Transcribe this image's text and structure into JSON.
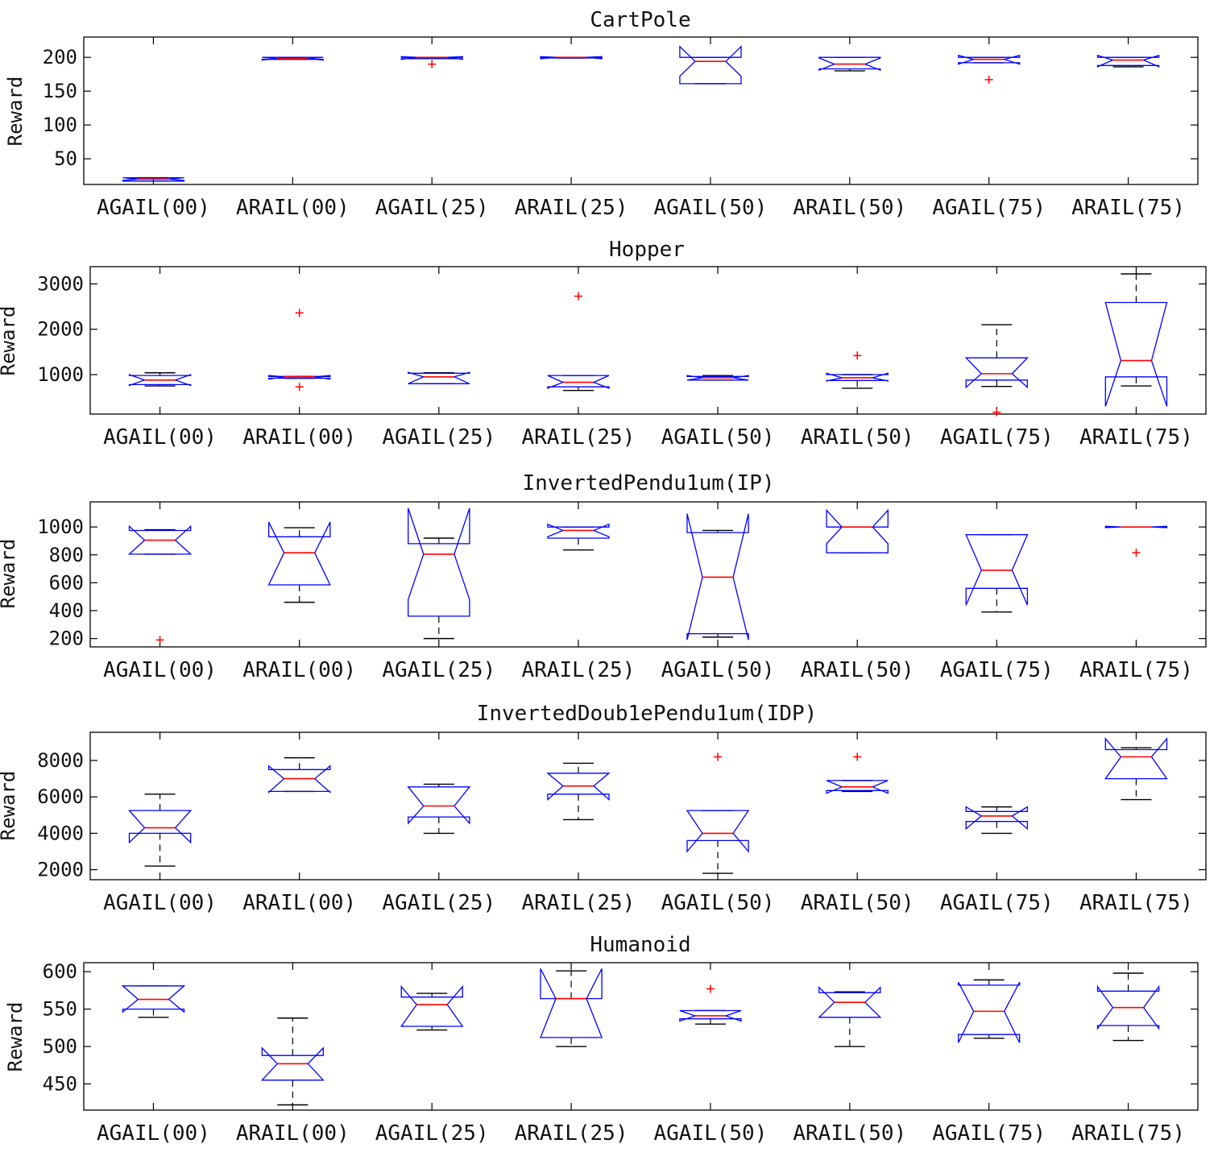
{
  "chart_data": [
    {
      "type": "box",
      "title": "CartPole",
      "ylabel": "Reward",
      "ylim": [
        12,
        230
      ],
      "yticks": [
        50,
        100,
        150,
        200
      ],
      "categories": [
        "AGAIL(00)",
        "ARAIL(00)",
        "AGAIL(25)",
        "ARAIL(25)",
        "AGAIL(50)",
        "ARAIL(50)",
        "AGAIL(75)",
        "ARAIL(75)"
      ],
      "boxes": [
        {
          "q1": 17,
          "median": 20,
          "q3": 22,
          "whisker_low": 17,
          "whisker_high": 22,
          "notch_low": 18,
          "notch_high": 22,
          "outliers": []
        },
        {
          "q1": 197,
          "median": 198,
          "q3": 200,
          "whisker_low": 197,
          "whisker_high": 200,
          "notch_low": 196,
          "notch_high": 200,
          "outliers": []
        },
        {
          "q1": 198,
          "median": 200,
          "q3": 200,
          "whisker_low": 198,
          "whisker_high": 200,
          "notch_low": 197,
          "notch_high": 201,
          "outliers": [
            190
          ]
        },
        {
          "q1": 199,
          "median": 200,
          "q3": 200,
          "whisker_low": 199,
          "whisker_high": 200,
          "notch_low": 198,
          "notch_high": 201,
          "outliers": []
        },
        {
          "q1": 161,
          "median": 194,
          "q3": 200,
          "whisker_low": 161,
          "whisker_high": 200,
          "notch_low": 172,
          "notch_high": 216,
          "outliers": []
        },
        {
          "q1": 183,
          "median": 190,
          "q3": 200,
          "whisker_low": 180,
          "whisker_high": 200,
          "notch_low": 181,
          "notch_high": 199,
          "outliers": []
        },
        {
          "q1": 192,
          "median": 197,
          "q3": 200,
          "whisker_low": 192,
          "whisker_high": 200,
          "notch_low": 190,
          "notch_high": 203,
          "outliers": [
            167
          ]
        },
        {
          "q1": 188,
          "median": 196,
          "q3": 200,
          "whisker_low": 186,
          "whisker_high": 200,
          "notch_low": 186,
          "notch_high": 203,
          "outliers": []
        }
      ]
    },
    {
      "type": "box",
      "title": "Hopper",
      "ylabel": "Reward",
      "ylim": [
        130,
        3380
      ],
      "yticks": [
        1000,
        2000,
        3000
      ],
      "categories": [
        "AGAIL(00)",
        "ARAIL(00)",
        "AGAIL(25)",
        "ARAIL(25)",
        "AGAIL(50)",
        "ARAIL(50)",
        "AGAIL(75)",
        "ARAIL(75)"
      ],
      "boxes": [
        {
          "q1": 780,
          "median": 880,
          "q3": 980,
          "whisker_low": 750,
          "whisker_high": 1040,
          "notch_low": 760,
          "notch_high": 1000,
          "outliers": []
        },
        {
          "q1": 920,
          "median": 950,
          "q3": 960,
          "whisker_low": 920,
          "whisker_high": 960,
          "notch_low": 900,
          "notch_high": 980,
          "outliers": [
            730,
            2360
          ]
        },
        {
          "q1": 800,
          "median": 950,
          "q3": 1030,
          "whisker_low": 800,
          "whisker_high": 1040,
          "notch_low": 800,
          "notch_high": 1050,
          "outliers": []
        },
        {
          "q1": 730,
          "median": 830,
          "q3": 980,
          "whisker_low": 650,
          "whisker_high": 980,
          "notch_low": 700,
          "notch_high": 980,
          "outliers": [
            2730
          ]
        },
        {
          "q1": 880,
          "median": 930,
          "q3": 960,
          "whisker_low": 880,
          "whisker_high": 980,
          "notch_low": 880,
          "notch_high": 980,
          "outliers": []
        },
        {
          "q1": 870,
          "median": 930,
          "q3": 1000,
          "whisker_low": 700,
          "whisker_high": 1000,
          "notch_low": 860,
          "notch_high": 1030,
          "outliers": [
            1420
          ]
        },
        {
          "q1": 880,
          "median": 1020,
          "q3": 1370,
          "whisker_low": 740,
          "whisker_high": 2100,
          "notch_low": 720,
          "notch_high": 1370,
          "outliers": [
            170
          ]
        },
        {
          "q1": 950,
          "median": 1310,
          "q3": 2590,
          "whisker_low": 750,
          "whisker_high": 3220,
          "notch_low": 300,
          "notch_high": 2590,
          "outliers": []
        }
      ]
    },
    {
      "type": "box",
      "title": "InvertedPendu1um(IP)",
      "ylabel": "Reward",
      "ylim": [
        140,
        1180
      ],
      "yticks": [
        200,
        400,
        600,
        800,
        1000
      ],
      "categories": [
        "AGAIL(00)",
        "ARAIL(00)",
        "AGAIL(25)",
        "ARAIL(25)",
        "AGAIL(50)",
        "ARAIL(50)",
        "AGAIL(75)",
        "ARAIL(75)"
      ],
      "boxes": [
        {
          "q1": 805,
          "median": 905,
          "q3": 975,
          "whisker_low": 805,
          "whisker_high": 980,
          "notch_low": 805,
          "notch_high": 1005,
          "outliers": [
            190
          ]
        },
        {
          "q1": 585,
          "median": 815,
          "q3": 930,
          "whisker_low": 460,
          "whisker_high": 995,
          "notch_low": 585,
          "notch_high": 1035,
          "outliers": []
        },
        {
          "q1": 360,
          "median": 805,
          "q3": 880,
          "whisker_low": 200,
          "whisker_high": 920,
          "notch_low": 480,
          "notch_high": 1135,
          "outliers": []
        },
        {
          "q1": 920,
          "median": 975,
          "q3": 1000,
          "whisker_low": 835,
          "whisker_high": 1000,
          "notch_low": 930,
          "notch_high": 1020,
          "outliers": []
        },
        {
          "q1": 235,
          "median": 640,
          "q3": 960,
          "whisker_low": 210,
          "whisker_high": 975,
          "notch_low": 190,
          "notch_high": 1095,
          "outliers": []
        },
        {
          "q1": 815,
          "median": 1000,
          "q3": 1000,
          "whisker_low": 815,
          "whisker_high": 1000,
          "notch_low": 880,
          "notch_high": 1120,
          "outliers": []
        },
        {
          "q1": 560,
          "median": 690,
          "q3": 945,
          "whisker_low": 390,
          "whisker_high": 945,
          "notch_low": 440,
          "notch_high": 945,
          "outliers": []
        },
        {
          "q1": 1000,
          "median": 1000,
          "q3": 1000,
          "whisker_low": 1000,
          "whisker_high": 1000,
          "notch_low": 995,
          "notch_high": 1005,
          "outliers": [
            815
          ]
        }
      ]
    },
    {
      "type": "box",
      "title": "InvertedDoub1ePendu1um(IDP)",
      "ylabel": "Reward",
      "ylim": [
        1450,
        9550
      ],
      "yticks": [
        2000,
        4000,
        6000,
        8000
      ],
      "categories": [
        "AGAIL(00)",
        "ARAIL(00)",
        "AGAIL(25)",
        "ARAIL(25)",
        "AGAIL(50)",
        "ARAIL(50)",
        "AGAIL(75)",
        "ARAIL(75)"
      ],
      "boxes": [
        {
          "q1": 4000,
          "median": 4300,
          "q3": 5250,
          "whisker_low": 2200,
          "whisker_high": 6150,
          "notch_low": 3500,
          "notch_high": 5250,
          "outliers": []
        },
        {
          "q1": 6300,
          "median": 7000,
          "q3": 7500,
          "whisker_low": 6300,
          "whisker_high": 8150,
          "notch_low": 6250,
          "notch_high": 7700,
          "outliers": []
        },
        {
          "q1": 4900,
          "median": 5500,
          "q3": 6550,
          "whisker_low": 4000,
          "whisker_high": 6700,
          "notch_low": 4550,
          "notch_high": 6550,
          "outliers": []
        },
        {
          "q1": 6150,
          "median": 6600,
          "q3": 7300,
          "whisker_low": 4750,
          "whisker_high": 7850,
          "notch_low": 5850,
          "notch_high": 7300,
          "outliers": []
        },
        {
          "q1": 3600,
          "median": 4000,
          "q3": 5250,
          "whisker_low": 1800,
          "whisker_high": 5250,
          "notch_low": 3000,
          "notch_high": 5250,
          "outliers": [
            8200
          ]
        },
        {
          "q1": 6350,
          "median": 6550,
          "q3": 6900,
          "whisker_low": 6300,
          "whisker_high": 6900,
          "notch_low": 6200,
          "notch_high": 6900,
          "outliers": [
            8200
          ]
        },
        {
          "q1": 4650,
          "median": 4950,
          "q3": 5200,
          "whisker_low": 4000,
          "whisker_high": 5450,
          "notch_low": 4250,
          "notch_high": 5450,
          "outliers": []
        },
        {
          "q1": 7000,
          "median": 8200,
          "q3": 8600,
          "whisker_low": 5850,
          "whisker_high": 8700,
          "notch_low": 7000,
          "notch_high": 9200,
          "outliers": []
        }
      ]
    },
    {
      "type": "box",
      "title": "Humanoid",
      "ylabel": "Reward",
      "ylim": [
        415,
        612
      ],
      "yticks": [
        450,
        500,
        550,
        600
      ],
      "categories": [
        "AGAIL(00)",
        "ARAIL(00)",
        "AGAIL(25)",
        "ARAIL(25)",
        "AGAIL(50)",
        "ARAIL(50)",
        "AGAIL(75)",
        "ARAIL(75)"
      ],
      "boxes": [
        {
          "q1": 550,
          "median": 563,
          "q3": 581,
          "whisker_low": 539,
          "whisker_high": 581,
          "notch_low": 546,
          "notch_high": 581,
          "outliers": []
        },
        {
          "q1": 455,
          "median": 477,
          "q3": 488,
          "whisker_low": 422,
          "whisker_high": 538,
          "notch_low": 455,
          "notch_high": 498,
          "outliers": []
        },
        {
          "q1": 527,
          "median": 556,
          "q3": 566,
          "whisker_low": 522,
          "whisker_high": 571,
          "notch_low": 527,
          "notch_high": 580,
          "outliers": []
        },
        {
          "q1": 512,
          "median": 564,
          "q3": 564,
          "whisker_low": 500,
          "whisker_high": 601,
          "notch_low": 512,
          "notch_high": 604,
          "outliers": []
        },
        {
          "q1": 537,
          "median": 541,
          "q3": 548,
          "whisker_low": 530,
          "whisker_high": 548,
          "notch_low": 534,
          "notch_high": 548,
          "outliers": [
            577
          ]
        },
        {
          "q1": 539,
          "median": 559,
          "q3": 572,
          "whisker_low": 500,
          "whisker_high": 573,
          "notch_low": 539,
          "notch_high": 579,
          "outliers": []
        },
        {
          "q1": 516,
          "median": 547,
          "q3": 582,
          "whisker_low": 511,
          "whisker_high": 589,
          "notch_low": 505,
          "notch_high": 586,
          "outliers": []
        },
        {
          "q1": 528,
          "median": 552,
          "q3": 574,
          "whisker_low": 508,
          "whisker_high": 598,
          "notch_low": 524,
          "notch_high": 580,
          "outliers": []
        }
      ]
    }
  ],
  "colors": {
    "box": "#0000ff",
    "median": "#ff0000",
    "whisker": "#000000",
    "outlier": "#ff0000",
    "axes": "#000000"
  }
}
